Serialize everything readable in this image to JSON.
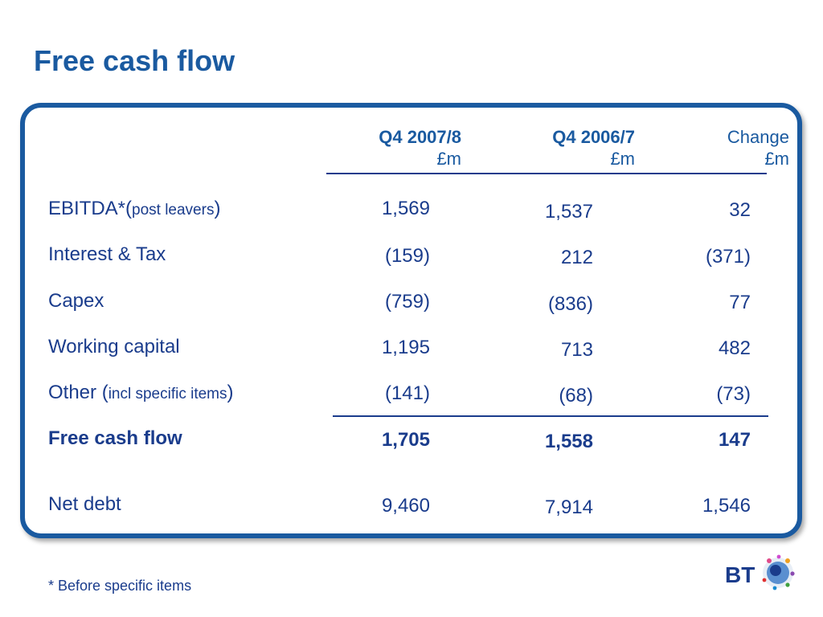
{
  "title": "Free cash flow",
  "columns": [
    {
      "line1": "Q4 2007/8",
      "line2": "£m"
    },
    {
      "line1": "Q4 2006/7",
      "line2": "£m"
    },
    {
      "line1": "Change",
      "line2": "£m"
    }
  ],
  "rows": [
    {
      "label": "EBITDA*(",
      "label_small": "post leavers",
      "label_end": ")",
      "values": [
        "1,569",
        "1,537",
        "32"
      ]
    },
    {
      "label": "Interest & Tax",
      "values": [
        "(159)",
        "212",
        "(371)"
      ]
    },
    {
      "label": "Capex",
      "values": [
        "(759)",
        "(836)",
        "77"
      ]
    },
    {
      "label": "Working capital",
      "values": [
        "1,195",
        "713",
        "482"
      ]
    },
    {
      "label": "Other (",
      "label_small": "incl specific items",
      "label_end": ")",
      "values": [
        "(141)",
        "(68)",
        "(73)"
      ]
    },
    {
      "label": "Free cash flow",
      "values": [
        "1,705",
        "1,558",
        "147"
      ]
    },
    {
      "label": "Net debt",
      "values": [
        "9,460",
        "7,914",
        "1,546"
      ]
    }
  ],
  "footnote": "* Before specific items",
  "logo_text": "BT"
}
